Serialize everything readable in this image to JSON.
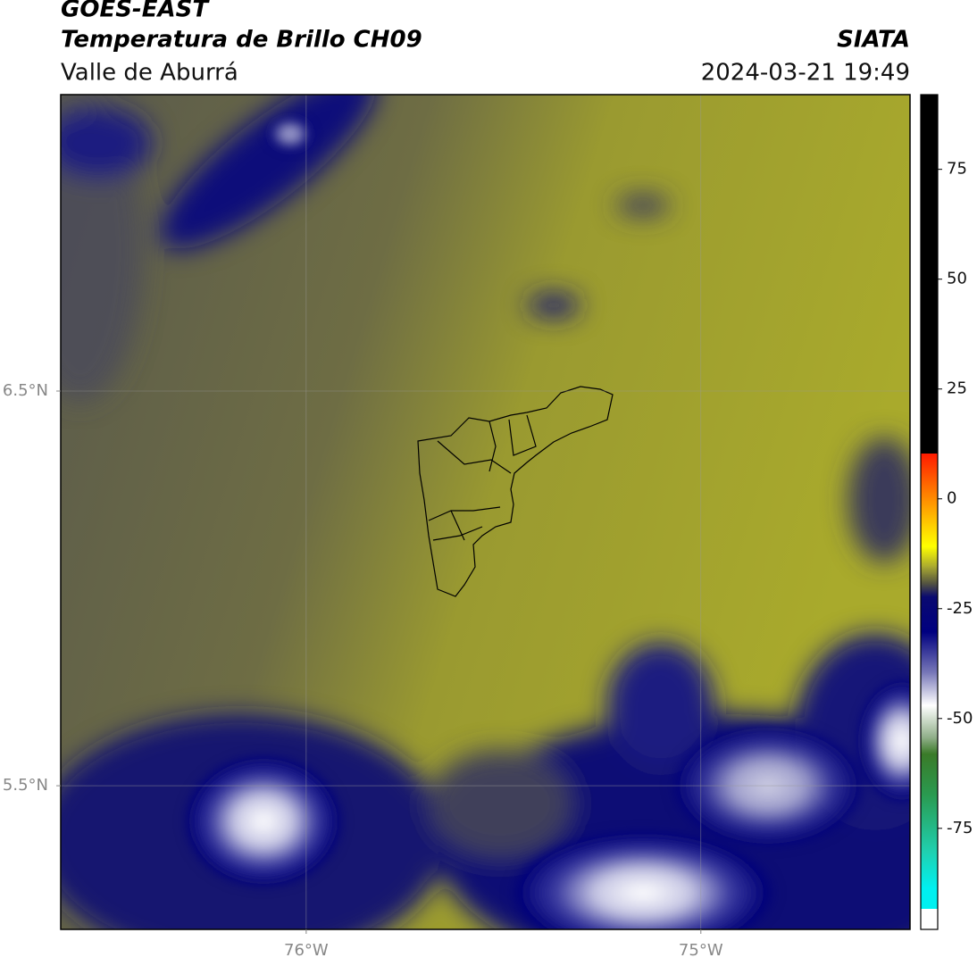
{
  "chart_data": {
    "type": "map",
    "title": "GOES-EAST",
    "subtitle": "Temperatura de Brillo CH09",
    "region": "Valle de Aburrá",
    "source": "SIATA",
    "datetime": "2024-03-21 19:49",
    "xlim": [
      -76.622,
      -74.47
    ],
    "ylim": [
      5.136,
      7.251
    ],
    "xticks": [
      {
        "value": -76,
        "label": "76°W"
      },
      {
        "value": -75,
        "label": "75°W"
      }
    ],
    "yticks": [
      {
        "value": 6.5,
        "label": "6.5°N"
      },
      {
        "value": 5.5,
        "label": "5.5°N"
      }
    ],
    "grid": true,
    "colorbar": {
      "lim": [
        -98,
        92
      ],
      "ticks": [
        75,
        50,
        25,
        0,
        -25,
        -50,
        -75
      ]
    }
  }
}
